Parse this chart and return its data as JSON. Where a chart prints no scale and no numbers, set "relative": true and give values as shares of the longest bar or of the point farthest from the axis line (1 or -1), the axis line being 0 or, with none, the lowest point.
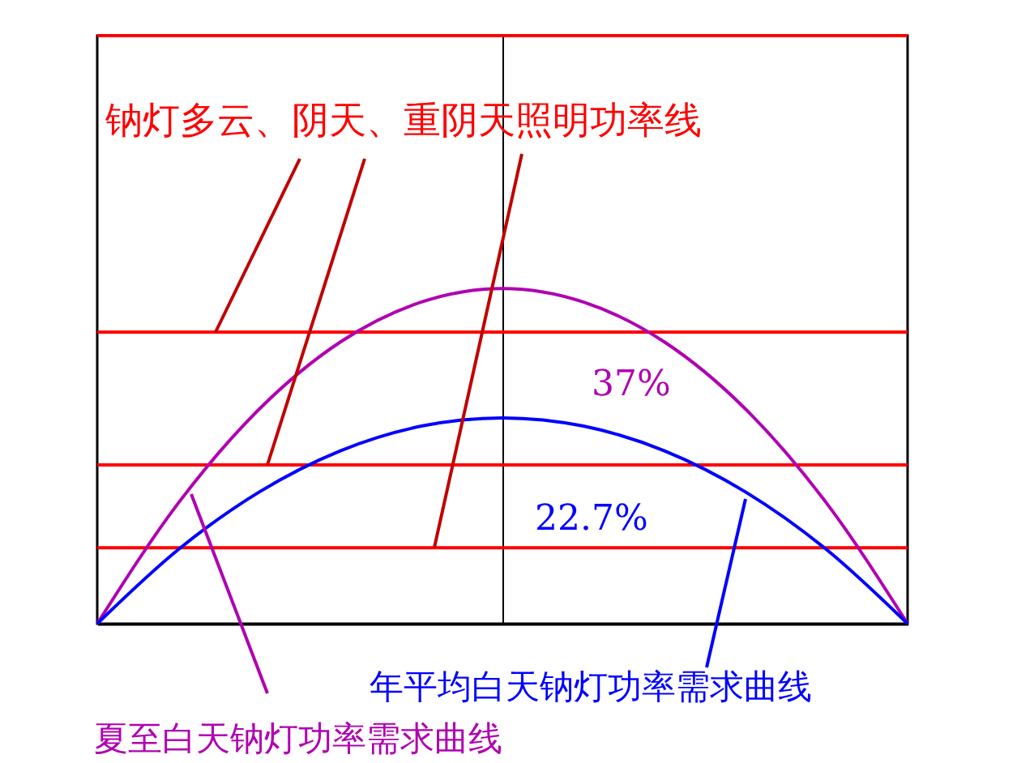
{
  "chart_data": {
    "type": "line",
    "relative": true,
    "legend": false,
    "categories": [
      null,
      null,
      null,
      null,
      null,
      null,
      null,
      null,
      null,
      null,
      null
    ],
    "series": [
      {
        "color": "#ff0000",
        "values": [
          1,
          1,
          1,
          1,
          1,
          1,
          1,
          1,
          1,
          1,
          1
        ]
      },
      {
        "color": "#ff0000",
        "values": [
          0.496,
          0.496,
          0.496,
          0.496,
          0.496,
          0.496,
          0.496,
          0.496,
          0.496,
          0.496,
          0.496
        ]
      },
      {
        "color": "#ff0000",
        "values": [
          0.27,
          0.27,
          0.27,
          0.27,
          0.27,
          0.27,
          0.27,
          0.27,
          0.27,
          0.27,
          0.27
        ]
      },
      {
        "color": "#ff0000",
        "values": [
          0.129,
          0.129,
          0.129,
          0.129,
          0.129,
          0.129,
          0.129,
          0.129,
          0.129,
          0.129,
          0.129
        ]
      },
      {
        "color": "#b000b0",
        "values": [
          0,
          0.205,
          0.365,
          0.479,
          0.547,
          0.57,
          0.547,
          0.479,
          0.365,
          0.205,
          0
        ]
      },
      {
        "color": "#0000ff",
        "values": [
          0,
          0.126,
          0.224,
          0.294,
          0.336,
          0.35,
          0.336,
          0.294,
          0.224,
          0.126,
          0
        ]
      }
    ],
    "annotations": [
      "钠灯多云、阴天、重阴天照明功率线",
      "37%",
      "22.7%",
      "年平均白天钠灯功率需求曲线",
      "夏至白天钠灯功率需求曲线"
    ]
  }
}
